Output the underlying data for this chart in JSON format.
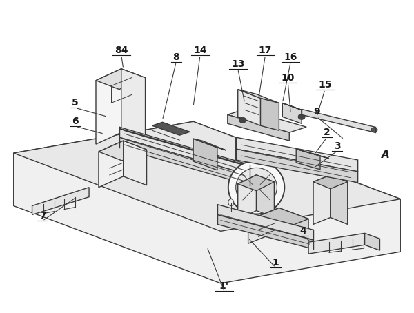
{
  "bg_color": "#ffffff",
  "line_color": "#3a3a3a",
  "lw": 1.0,
  "fig_w": 6.0,
  "fig_h": 4.54
}
